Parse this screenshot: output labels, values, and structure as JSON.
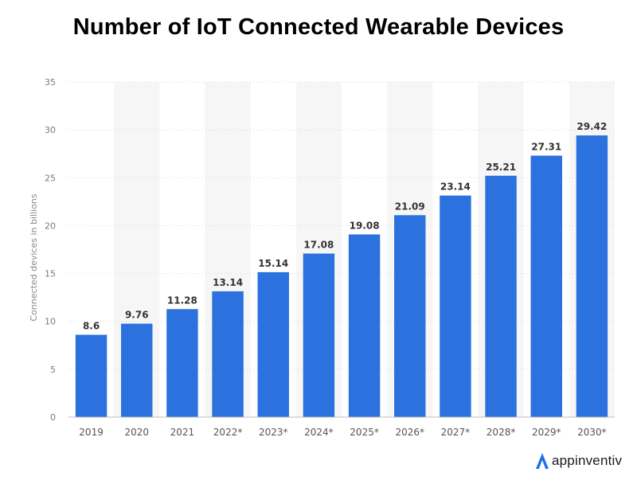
{
  "chart_data": {
    "type": "bar",
    "title": "Number of IoT Connected Wearable Devices",
    "ylabel": "Connected devices in billions",
    "xlabel": "",
    "categories": [
      "2019",
      "2020",
      "2021",
      "2022*",
      "2023*",
      "2024*",
      "2025*",
      "2026*",
      "2027*",
      "2028*",
      "2029*",
      "2030*"
    ],
    "values": [
      8.6,
      9.76,
      11.28,
      13.14,
      15.14,
      17.08,
      19.08,
      21.09,
      23.14,
      25.21,
      27.31,
      29.42
    ],
    "value_labels": [
      "8.6",
      "9.76",
      "11.28",
      "13.14",
      "15.14",
      "17.08",
      "19.08",
      "21.09",
      "23.14",
      "25.21",
      "27.31",
      "29.42"
    ],
    "ylim": [
      0,
      35
    ],
    "yticks": [
      "0",
      "5",
      "10",
      "15",
      "20",
      "25",
      "30",
      "35"
    ],
    "grid": "horizontal dotted",
    "bar_color": "#2b72de",
    "alt_band_color": "#f6f6f6"
  },
  "branding": {
    "logo_text": "appinventiv",
    "logo_icon": "appinventiv-a-icon",
    "logo_color": "#1a73e8"
  }
}
